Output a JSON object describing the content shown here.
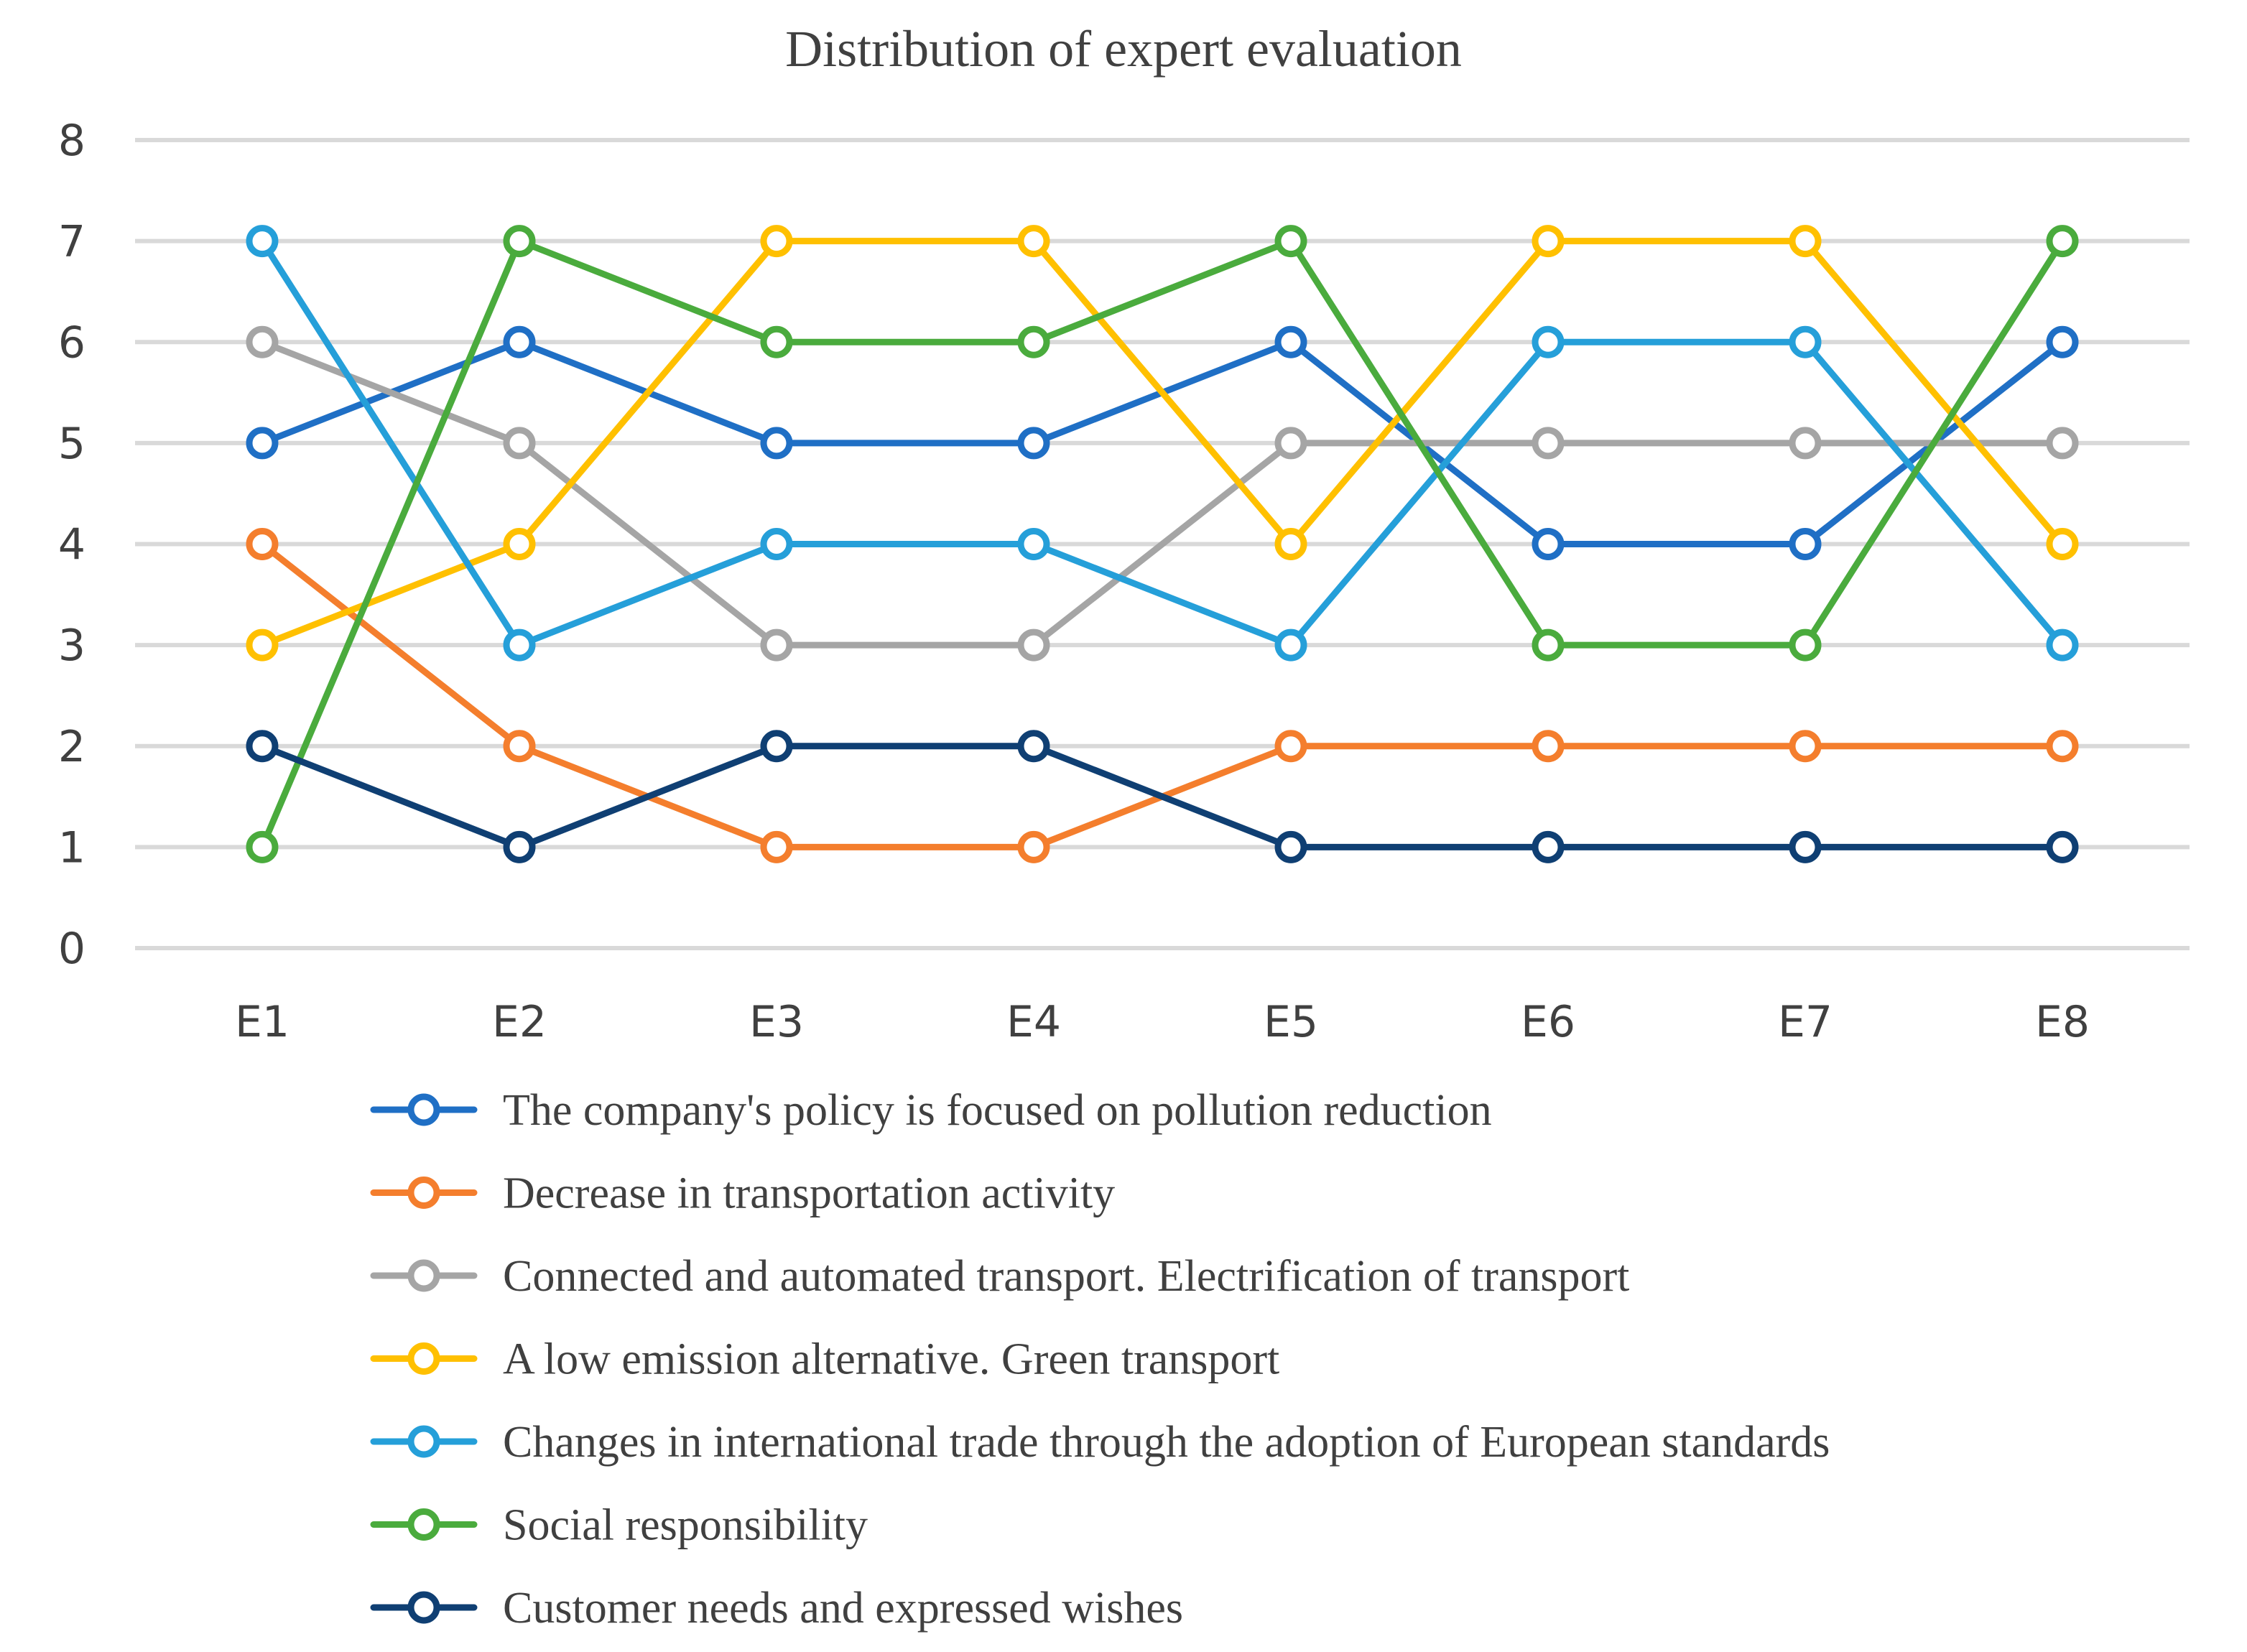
{
  "chart_data": {
    "type": "line",
    "title": "Distribution of expert evaluation",
    "xlabel": "",
    "ylabel": "",
    "categories": [
      "E1",
      "E2",
      "E3",
      "E4",
      "E5",
      "E6",
      "E7",
      "E8"
    ],
    "ylim": [
      0,
      8
    ],
    "yticks": [
      0,
      1,
      2,
      3,
      4,
      5,
      6,
      7,
      8
    ],
    "grid": true,
    "legend_position": "bottom",
    "series": [
      {
        "name": "The company's policy is focused on pollution reduction",
        "color": "#1f6fc5",
        "values": [
          5,
          6,
          5,
          5,
          6,
          4,
          4,
          6
        ]
      },
      {
        "name": "Decrease in transportation activity",
        "color": "#f47e2d",
        "values": [
          4,
          2,
          1,
          1,
          2,
          2,
          2,
          2
        ]
      },
      {
        "name": "Connected and automated transport. Electrification of transport",
        "color": "#a5a5a5",
        "values": [
          6,
          5,
          3,
          3,
          5,
          5,
          5,
          5
        ]
      },
      {
        "name": "A low emission alternative. Green transport",
        "color": "#ffc000",
        "values": [
          3,
          4,
          7,
          7,
          4,
          7,
          7,
          4
        ]
      },
      {
        "name": "Changes in international trade through the adoption of European standards",
        "color": "#259fd9",
        "values": [
          7,
          3,
          4,
          4,
          3,
          6,
          6,
          3
        ]
      },
      {
        "name": "Social responsibility",
        "color": "#4aab3d",
        "values": [
          1,
          7,
          6,
          6,
          7,
          3,
          3,
          7
        ]
      },
      {
        "name": "Customer needs and expressed wishes",
        "color": "#0f3f73",
        "values": [
          2,
          1,
          2,
          2,
          1,
          1,
          1,
          1
        ]
      }
    ]
  }
}
